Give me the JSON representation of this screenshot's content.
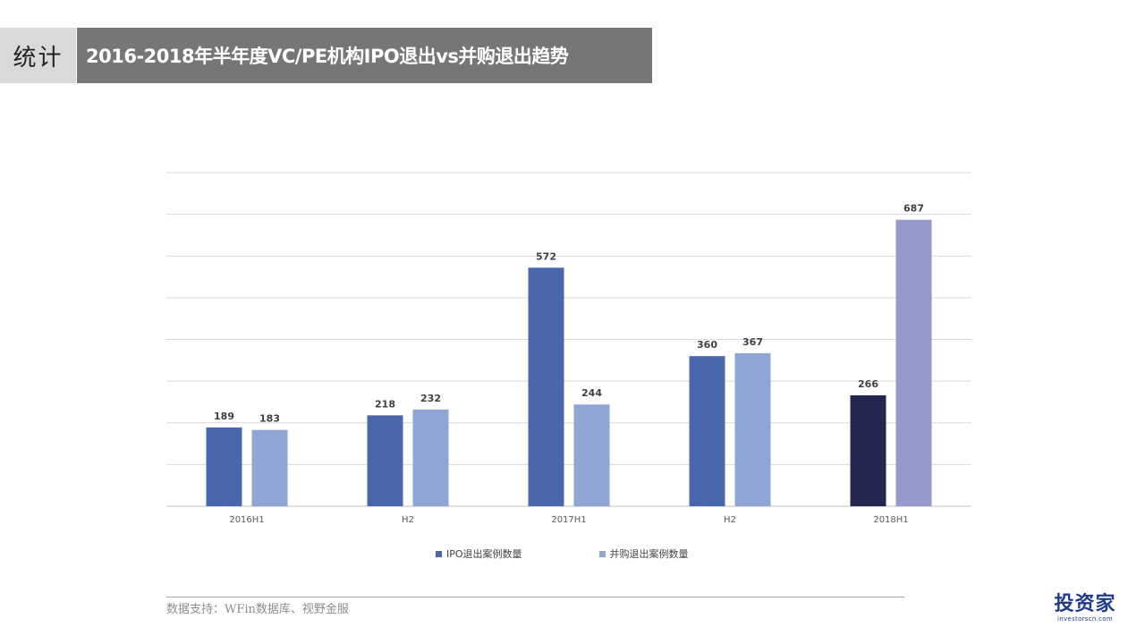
{
  "header": {
    "tag": "统计",
    "title": "2016-2018年半年度VC/PE机构IPO退出vs并购退出趋势"
  },
  "chart_data": {
    "type": "bar",
    "title": "2016-2018年半年度VC/PE机构IPO退出vs并购退出趋势",
    "categories": [
      "2016H1",
      "H2",
      "2017H1",
      "H2",
      "2018H1"
    ],
    "series": [
      {
        "name": "IPO退出案例数量",
        "values": [
          189,
          218,
          572,
          360,
          266
        ],
        "color": "#4a67ad"
      },
      {
        "name": "并购退出案例数量",
        "values": [
          183,
          232,
          244,
          367,
          687
        ],
        "color": "#8fa5d3"
      }
    ],
    "highlight": {
      "series_index": 0,
      "category_index": 4,
      "color": "#23274f",
      "series_color": "#9599cc",
      "series_highlight_index": 4
    },
    "ylim": [
      0,
      800
    ],
    "gridline_step": 100,
    "xlabel": "",
    "ylabel": "",
    "legend_position": "bottom",
    "gridlines": true,
    "y_tick_labels_visible": false
  },
  "source": {
    "text": "数据支持：WFin数据库、视野金服"
  },
  "logo": {
    "main": "投资家",
    "sub": "investorscn.com"
  }
}
